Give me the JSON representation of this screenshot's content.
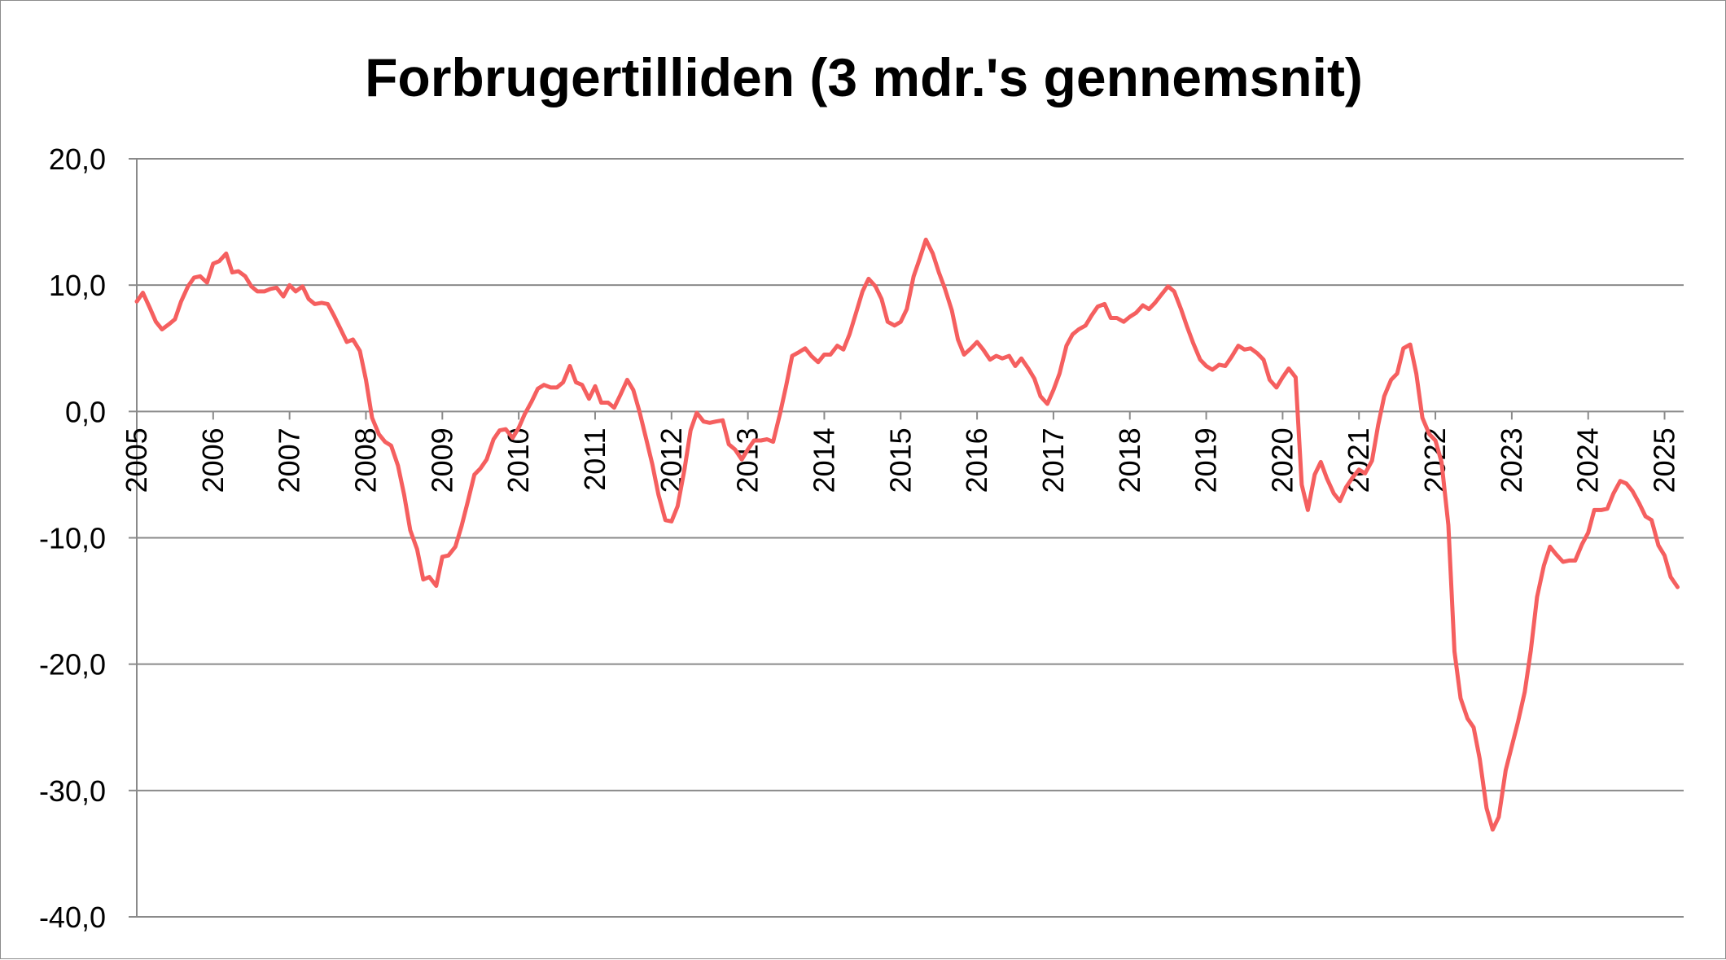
{
  "colors": {
    "line": "#f55f5f",
    "grid": "#8a8a8a",
    "axis": "#8a8a8a",
    "background": "#ffffff"
  },
  "chart_data": {
    "type": "line",
    "title": "Forbrugertilliden (3 mdr.'s gennemsnit)",
    "xlabel": "",
    "ylabel": "",
    "ylim": [
      -40,
      20
    ],
    "xlim": [
      2005.0,
      2025.25
    ],
    "grid": "horizontal",
    "legend": "none",
    "yticks": [
      "20,0",
      "10,0",
      "0,0",
      "-10,0",
      "-20,0",
      "-30,0",
      "-40,0"
    ],
    "ytick_values": [
      20,
      10,
      0,
      -10,
      -20,
      -30,
      -40
    ],
    "xticks": [
      "2005",
      "2006",
      "2007",
      "2008",
      "2009",
      "2010",
      "2011",
      "2012",
      "2013",
      "2014",
      "2015",
      "2016",
      "2017",
      "2018",
      "2019",
      "2020",
      "2021",
      "2022",
      "2023",
      "2024",
      "2025"
    ],
    "series": [
      {
        "x": [
          2005.0,
          2005.08,
          2005.17,
          2005.25,
          2005.33,
          2005.42,
          2005.5,
          2005.58,
          2005.67,
          2005.75,
          2005.83,
          2005.92,
          2006.0,
          2006.08,
          2006.17,
          2006.25,
          2006.33,
          2006.42,
          2006.5,
          2006.58,
          2006.67,
          2006.75,
          2006.83,
          2006.92,
          2007.0,
          2007.08,
          2007.17,
          2007.25,
          2007.33,
          2007.42,
          2007.5,
          2007.58,
          2007.67,
          2007.75,
          2007.83,
          2007.92,
          2008.0,
          2008.08,
          2008.17,
          2008.25,
          2008.33,
          2008.42,
          2008.5,
          2008.58,
          2008.67,
          2008.75,
          2008.83,
          2008.92,
          2009.0,
          2009.08,
          2009.17,
          2009.25,
          2009.33,
          2009.42,
          2009.5,
          2009.58,
          2009.67,
          2009.75,
          2009.83,
          2009.92,
          2010.0,
          2010.08,
          2010.17,
          2010.25,
          2010.33,
          2010.42,
          2010.5,
          2010.58,
          2010.67,
          2010.75,
          2010.83,
          2010.92,
          2011.0,
          2011.08,
          2011.17,
          2011.25,
          2011.33,
          2011.42,
          2011.5,
          2011.58,
          2011.67,
          2011.75,
          2011.83,
          2011.92,
          2012.0,
          2012.08,
          2012.17,
          2012.25,
          2012.33,
          2012.42,
          2012.5,
          2012.58,
          2012.67,
          2012.75,
          2012.83,
          2012.92,
          2013.0,
          2013.08,
          2013.17,
          2013.25,
          2013.33,
          2013.42,
          2013.5,
          2013.58,
          2013.67,
          2013.75,
          2013.83,
          2013.92,
          2014.0,
          2014.08,
          2014.17,
          2014.25,
          2014.33,
          2014.42,
          2014.5,
          2014.58,
          2014.67,
          2014.75,
          2014.83,
          2014.92,
          2015.0,
          2015.08,
          2015.17,
          2015.25,
          2015.33,
          2015.42,
          2015.5,
          2015.58,
          2015.67,
          2015.75,
          2015.83,
          2015.92,
          2016.0,
          2016.08,
          2016.17,
          2016.25,
          2016.33,
          2016.42,
          2016.5,
          2016.58,
          2016.67,
          2016.75,
          2016.83,
          2016.92,
          2017.0,
          2017.08,
          2017.17,
          2017.25,
          2017.33,
          2017.42,
          2017.5,
          2017.58,
          2017.67,
          2017.75,
          2017.83,
          2017.92,
          2018.0,
          2018.08,
          2018.17,
          2018.25,
          2018.33,
          2018.42,
          2018.5,
          2018.58,
          2018.67,
          2018.75,
          2018.83,
          2018.92,
          2019.0,
          2019.08,
          2019.17,
          2019.25,
          2019.33,
          2019.42,
          2019.5,
          2019.58,
          2019.67,
          2019.75,
          2019.83,
          2019.92,
          2020.0,
          2020.08,
          2020.17,
          2020.25,
          2020.33,
          2020.42,
          2020.5,
          2020.58,
          2020.67,
          2020.75,
          2020.83,
          2020.92,
          2021.0,
          2021.08,
          2021.17,
          2021.25,
          2021.33,
          2021.42,
          2021.5,
          2021.58,
          2021.67,
          2021.75,
          2021.83,
          2021.92,
          2022.0,
          2022.08,
          2022.17,
          2022.25,
          2022.33,
          2022.42,
          2022.5,
          2022.58,
          2022.67,
          2022.75,
          2022.83,
          2022.92,
          2023.0,
          2023.08,
          2023.17,
          2023.25,
          2023.33,
          2023.42,
          2023.5,
          2023.58,
          2023.67,
          2023.75,
          2023.83,
          2023.92,
          2024.0,
          2024.08,
          2024.17,
          2024.25,
          2024.33,
          2024.42,
          2024.5,
          2024.58,
          2024.67,
          2024.75,
          2024.83,
          2024.92,
          2025.0,
          2025.08,
          2025.17
        ],
        "values": [
          8.7,
          9.4,
          8.2,
          7.1,
          6.5,
          6.9,
          7.3,
          8.7,
          9.9,
          10.6,
          10.7,
          10.2,
          11.7,
          11.9,
          12.5,
          11.0,
          11.1,
          10.7,
          9.9,
          9.5,
          9.5,
          9.7,
          9.8,
          9.1,
          10.0,
          9.5,
          9.9,
          8.9,
          8.5,
          8.6,
          8.5,
          7.6,
          6.5,
          5.5,
          5.7,
          4.8,
          2.5,
          -0.5,
          -1.8,
          -2.4,
          -2.7,
          -4.3,
          -6.6,
          -9.4,
          -10.9,
          -13.3,
          -13.1,
          -13.8,
          -11.5,
          -11.4,
          -10.7,
          -9.1,
          -7.2,
          -5.0,
          -4.5,
          -3.8,
          -2.2,
          -1.5,
          -1.4,
          -2.1,
          -1.3,
          -0.2,
          0.8,
          1.8,
          2.1,
          1.9,
          1.9,
          2.3,
          3.6,
          2.3,
          2.1,
          1.0,
          2.0,
          0.7,
          0.7,
          0.3,
          1.3,
          2.5,
          1.7,
          0.0,
          -2.2,
          -4.2,
          -6.6,
          -8.6,
          -8.7,
          -7.5,
          -4.6,
          -1.5,
          -0.1,
          -0.8,
          -0.9,
          -0.8,
          -0.7,
          -2.6,
          -3.0,
          -3.8,
          -3.0,
          -2.3,
          -2.3,
          -2.2,
          -2.4,
          -0.2,
          2.0,
          4.4,
          4.7,
          5.0,
          4.4,
          3.9,
          4.5,
          4.5,
          5.2,
          4.9,
          6.1,
          7.9,
          9.5,
          10.5,
          9.9,
          8.9,
          7.1,
          6.8,
          7.1,
          8.1,
          10.7,
          12.1,
          13.6,
          12.5,
          11.0,
          9.7,
          8.0,
          5.7,
          4.5,
          5.0,
          5.5,
          4.9,
          4.1,
          4.4,
          4.2,
          4.4,
          3.6,
          4.2,
          3.4,
          2.6,
          1.2,
          0.6,
          1.7,
          3.0,
          5.2,
          6.1,
          6.5,
          6.8,
          7.6,
          8.3,
          8.5,
          7.4,
          7.4,
          7.1,
          7.5,
          7.8,
          8.4,
          8.1,
          8.6,
          9.3,
          9.9,
          9.5,
          8.1,
          6.7,
          5.4,
          4.1,
          3.6,
          3.3,
          3.7,
          3.6,
          4.3,
          5.2,
          4.9,
          5.0,
          4.6,
          4.1,
          2.5,
          1.9,
          2.7,
          3.4,
          2.7,
          -5.8,
          -7.8,
          -5.0,
          -4.0,
          -5.3,
          -6.5,
          -7.1,
          -6.0,
          -5.2,
          -4.6,
          -4.9,
          -3.9,
          -1.1,
          1.2,
          2.5,
          3.0,
          5.0,
          5.3,
          3.0,
          -0.5,
          -1.8,
          -2.3,
          -4.0,
          -9.0,
          -19.0,
          -22.7,
          -24.3,
          -25.0,
          -27.5,
          -31.4,
          -33.1,
          -32.1,
          -28.4,
          -26.5,
          -24.6,
          -22.2,
          -18.9,
          -14.7,
          -12.2,
          -10.7,
          -11.3,
          -11.9,
          -11.8,
          -11.8,
          -10.5,
          -9.6,
          -7.8,
          -7.8,
          -7.7,
          -6.5,
          -5.5,
          -5.7,
          -6.3,
          -7.3,
          -8.3,
          -8.6,
          -10.6,
          -11.4,
          -13.1,
          -13.9
        ]
      }
    ]
  }
}
